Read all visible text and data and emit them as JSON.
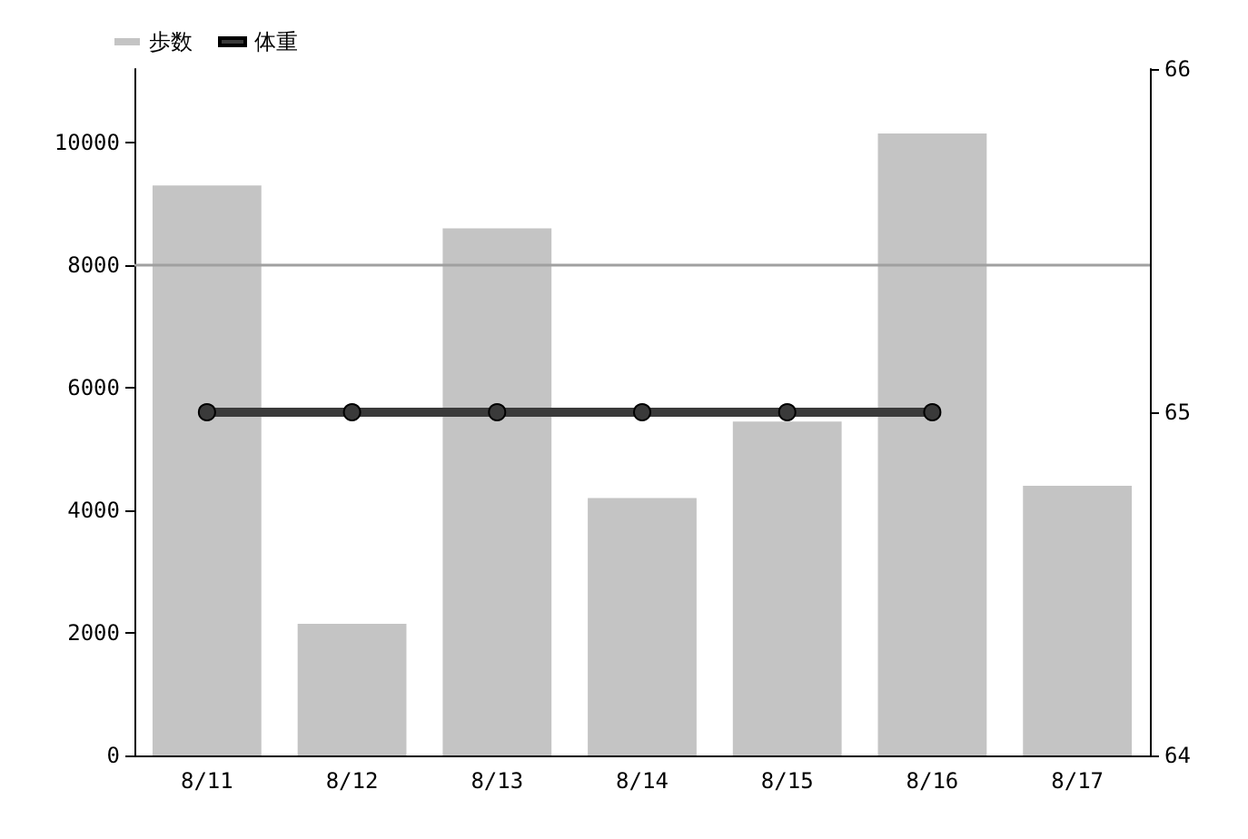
{
  "chart_data": {
    "type": "bar",
    "categories": [
      "8/11",
      "8/12",
      "8/13",
      "8/14",
      "8/15",
      "8/16",
      "8/17"
    ],
    "series": [
      {
        "name": "歩数",
        "color": "#c4c4c4",
        "values": [
          9300,
          2150,
          8600,
          4200,
          5450,
          10150,
          4400
        ]
      },
      {
        "name": "体重",
        "type": "line",
        "axis": "y2",
        "color": "#3a3a3a",
        "values": [
          65,
          65,
          65,
          65,
          65,
          65,
          null
        ]
      }
    ],
    "ylim": [
      0,
      11200
    ],
    "yticks": [
      0,
      2000,
      4000,
      6000,
      8000,
      10000
    ],
    "y2lim": [
      64,
      66
    ],
    "y2ticks": [
      64,
      65,
      66
    ],
    "ref_lines": [
      {
        "axis": "y",
        "value": 8000,
        "color": "#a0a0a0"
      }
    ],
    "marker": "circle",
    "line_style": "solid",
    "grid": false,
    "legend": "top left"
  }
}
